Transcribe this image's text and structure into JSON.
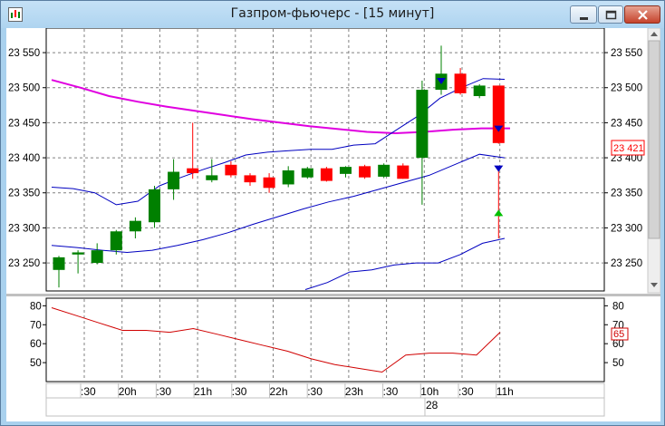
{
  "window": {
    "title": "Газпром-фьючерс - [15 минут]"
  },
  "colors": {
    "bull": "#008000",
    "bear": "#ff0000",
    "ma_long": "#e000e0",
    "band": "#0000c0",
    "rsi": "#d00000",
    "grid": "#808080"
  },
  "price_axis": {
    "ticks": [
      "23 550",
      "23 500",
      "23 450",
      "23 400",
      "23 350",
      "23 300",
      "23 250"
    ],
    "tick_values": [
      23550,
      23500,
      23450,
      23400,
      23350,
      23300,
      23250
    ],
    "current_label": "23 421",
    "ylim": [
      23210,
      23585
    ]
  },
  "rsi_axis": {
    "left_ticks": [
      "80",
      "70",
      "60",
      "50"
    ],
    "right_ticks": [
      "80",
      "70",
      "60",
      "50"
    ],
    "tick_values": [
      80,
      70,
      60,
      50
    ],
    "current_label": "65",
    "ylim": [
      40,
      84
    ]
  },
  "time_axis": {
    "labels": [
      ":30",
      "20h",
      ":30",
      "21h",
      ":30",
      "22h",
      ":30",
      "23h",
      ":30",
      "10h",
      ":30",
      "11h"
    ],
    "day_label": "28"
  },
  "chart_data": [
    {
      "type": "candlestick",
      "series": [
        {
          "name": "",
          "ohlc": [
            [
              23240,
              23260,
              23215,
              23258
            ],
            [
              23262,
              23268,
              23235,
              23265
            ],
            [
              23250,
              23278,
              23248,
              23268
            ],
            [
              23268,
              23297,
              23262,
              23295
            ],
            [
              23295,
              23315,
              23285,
              23310
            ],
            [
              23308,
              23360,
              23300,
              23355
            ],
            [
              23355,
              23398,
              23340,
              23380
            ],
            [
              23385,
              23450,
              23370,
              23378
            ],
            [
              23368,
              23398,
              23365,
              23375
            ],
            [
              23390,
              23395,
              23372,
              23375
            ],
            [
              23375,
              23378,
              23360,
              23365
            ],
            [
              23372,
              23378,
              23350,
              23357
            ],
            [
              23362,
              23388,
              23358,
              23382
            ],
            [
              23372,
              23387,
              23370,
              23385
            ],
            [
              23385,
              23387,
              23366,
              23367
            ],
            [
              23377,
              23388,
              23372,
              23387
            ],
            [
              23388,
              23390,
              23370,
              23372
            ],
            [
              23373,
              23392,
              23371,
              23390
            ],
            [
              23389,
              23392,
              23370,
              23370
            ],
            [
              23400,
              23510,
              23333,
              23497
            ],
            [
              23497,
              23560,
              23490,
              23520
            ],
            [
              23520,
              23528,
              23490,
              23492
            ],
            [
              23488,
              23505,
              23485,
              23503
            ],
            [
              23503,
              23503,
              23420,
              23421
            ]
          ]
        }
      ]
    },
    {
      "type": "line",
      "series": [
        {
          "name": "",
          "role": "ma_long",
          "values": [
            23511,
            23500,
            23488,
            23480,
            23473,
            23467,
            23461,
            23455,
            23450,
            23445,
            23441,
            23437,
            23435,
            23437,
            23440,
            23442,
            23442
          ]
        },
        {
          "name": "",
          "role": "band_upper",
          "values": [
            23358,
            23356,
            23350,
            23333,
            23338,
            23360,
            23372,
            23383,
            23393,
            23404,
            23408,
            23410,
            23412,
            23412,
            23418,
            23420,
            23440,
            23460,
            23485,
            23500,
            23513,
            23512
          ]
        },
        {
          "name": "",
          "role": "band_mid",
          "values": [
            23275,
            23272,
            23268,
            23265,
            23268,
            23275,
            23283,
            23293,
            23305,
            23316,
            23327,
            23337,
            23345,
            23355,
            23365,
            23375,
            23390,
            23405,
            23400
          ]
        },
        {
          "name": "",
          "role": "band_lower",
          "values": [
            23212,
            23222,
            23237,
            23240,
            23247,
            23250,
            23250,
            23262,
            23278,
            23285
          ]
        }
      ]
    },
    {
      "type": "line",
      "series": [
        {
          "name": "",
          "role": "rsi",
          "values": [
            79,
            75,
            71,
            67,
            67,
            66,
            68,
            65,
            62,
            59,
            56,
            52,
            49,
            47,
            45,
            54,
            55,
            55,
            54,
            66
          ]
        }
      ]
    }
  ]
}
